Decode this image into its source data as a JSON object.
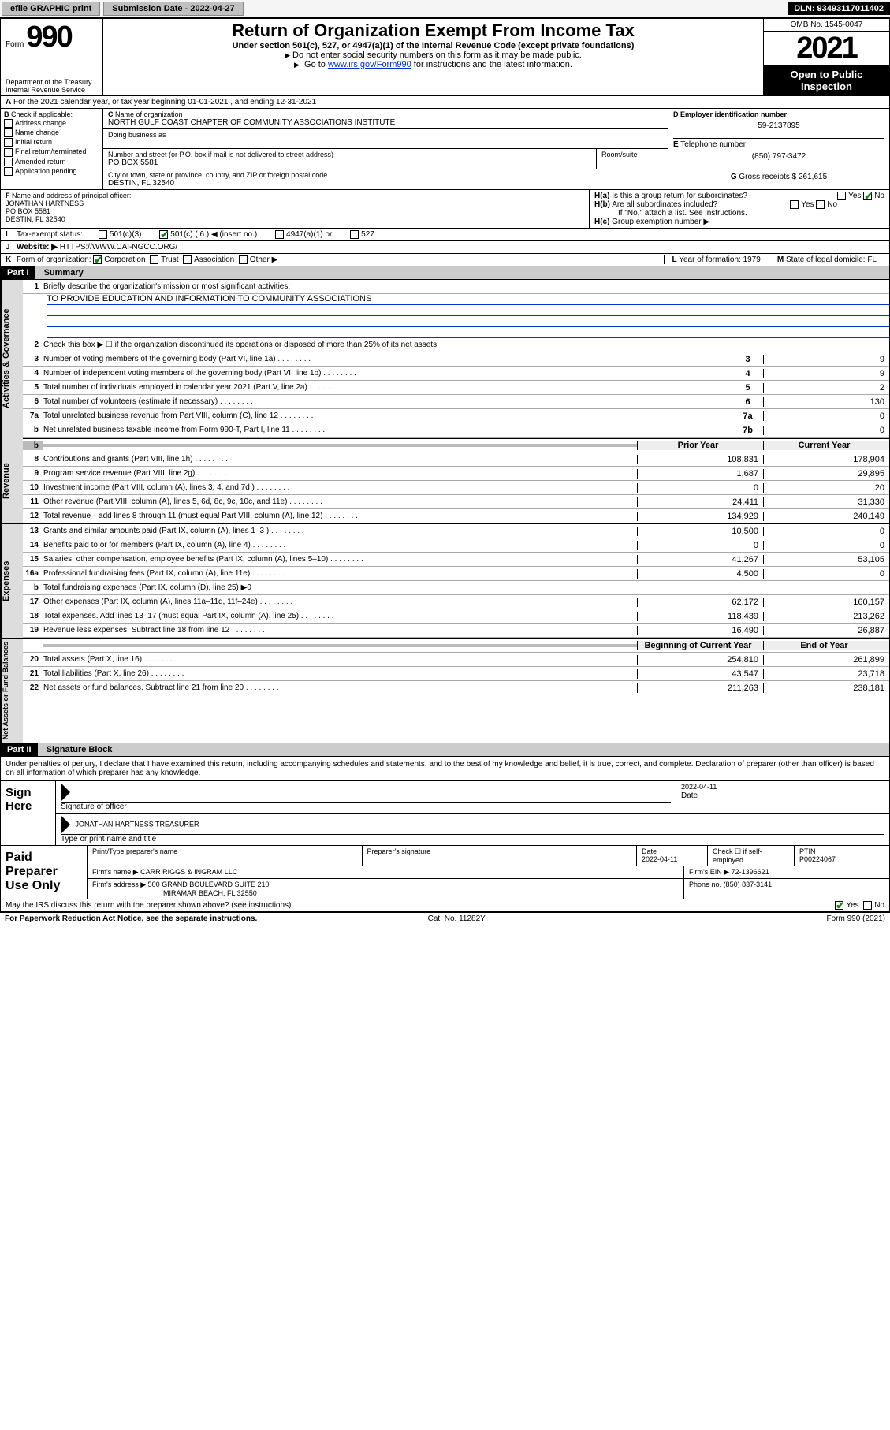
{
  "topbar": {
    "efile": "efile GRAPHIC print",
    "subdate_label": "Submission Date - ",
    "subdate": "2022-04-27",
    "dln": "DLN: 93493117011402"
  },
  "header": {
    "form_label": "Form",
    "form_num": "990",
    "dept": "Department of the Treasury\nInternal Revenue Service",
    "title": "Return of Organization Exempt From Income Tax",
    "sub": "Under section 501(c), 527, or 4947(a)(1) of the Internal Revenue Code (except private foundations)",
    "note1": "Do not enter social security numbers on this form as it may be made public.",
    "note2_pre": "Go to ",
    "note2_link": "www.irs.gov/Form990",
    "note2_post": " for instructions and the latest information.",
    "omb": "OMB No. 1545-0047",
    "year": "2021",
    "inspect": "Open to Public Inspection"
  },
  "rowA": "For the 2021 calendar year, or tax year beginning 01-01-2021    , and ending 12-31-2021",
  "secB": {
    "label": "Check if applicable:",
    "opts": [
      "Address change",
      "Name change",
      "Initial return",
      "Final return/terminated",
      "Amended return",
      "Application pending"
    ],
    "c_label": "Name of organization",
    "org": "NORTH GULF COAST CHAPTER OF COMMUNITY ASSOCIATIONS INSTITUTE",
    "dba_label": "Doing business as",
    "addr_label": "Number and street (or P.O. box if mail is not delivered to street address)",
    "room_label": "Room/suite",
    "addr": "PO BOX 5581",
    "city_label": "City or town, state or province, country, and ZIP or foreign postal code",
    "city": "DESTIN, FL  32540",
    "d_label": "Employer identification number",
    "ein": "59-2137895",
    "e_label": "Telephone number",
    "phone": "(850) 797-3472",
    "g_label": "Gross receipts $",
    "gross": "261,615"
  },
  "secF": {
    "f_label": "Name and address of principal officer:",
    "officer": "JONATHAN HARTNESS\nPO BOX 5581\nDESTIN, FL  32540",
    "ha": "Is this a group return for subordinates?",
    "hb": "Are all subordinates included?",
    "hb_note": "If \"No,\" attach a list. See instructions.",
    "hc": "Group exemption number ▶"
  },
  "rowI_label": "Tax-exempt status:",
  "rowI_opts": [
    "501(c)(3)",
    "501(c) ( 6 ) ◀ (insert no.)",
    "4947(a)(1) or",
    "527"
  ],
  "rowJ_label": "Website: ▶",
  "website": "HTTPS://WWW.CAI-NGCC.ORG/",
  "rowK_label": "Form of organization:",
  "rowK_opts": [
    "Corporation",
    "Trust",
    "Association",
    "Other ▶"
  ],
  "rowL": "Year of formation: 1979",
  "rowM": "State of legal domicile: FL",
  "part1": {
    "num": "Part I",
    "title": "Summary"
  },
  "gov": {
    "l1": "Briefly describe the organization's mission or most significant activities:",
    "mission": "TO PROVIDE EDUCATION AND INFORMATION TO COMMUNITY ASSOCIATIONS",
    "l2": "Check this box ▶ ☐  if the organization discontinued its operations or disposed of more than 25% of its net assets.",
    "rows": [
      {
        "n": "3",
        "t": "Number of voting members of the governing body (Part VI, line 1a)",
        "v": "9"
      },
      {
        "n": "4",
        "t": "Number of independent voting members of the governing body (Part VI, line 1b)",
        "v": "9"
      },
      {
        "n": "5",
        "t": "Total number of individuals employed in calendar year 2021 (Part V, line 2a)",
        "v": "2"
      },
      {
        "n": "6",
        "t": "Total number of volunteers (estimate if necessary)",
        "v": "130"
      },
      {
        "n": "7a",
        "t": "Total unrelated business revenue from Part VIII, column (C), line 12",
        "v": "0"
      },
      {
        "n": "b",
        "t": "Net unrelated business taxable income from Form 990-T, Part I, line 11",
        "nc": "7b",
        "v": "0"
      }
    ]
  },
  "rev": {
    "hdr_prior": "Prior Year",
    "hdr_cur": "Current Year",
    "rows": [
      {
        "n": "8",
        "t": "Contributions and grants (Part VIII, line 1h)",
        "p": "108,831",
        "c": "178,904"
      },
      {
        "n": "9",
        "t": "Program service revenue (Part VIII, line 2g)",
        "p": "1,687",
        "c": "29,895"
      },
      {
        "n": "10",
        "t": "Investment income (Part VIII, column (A), lines 3, 4, and 7d )",
        "p": "0",
        "c": "20"
      },
      {
        "n": "11",
        "t": "Other revenue (Part VIII, column (A), lines 5, 6d, 8c, 9c, 10c, and 11e)",
        "p": "24,411",
        "c": "31,330"
      },
      {
        "n": "12",
        "t": "Total revenue—add lines 8 through 11 (must equal Part VIII, column (A), line 12)",
        "p": "134,929",
        "c": "240,149"
      }
    ]
  },
  "exp": {
    "rows": [
      {
        "n": "13",
        "t": "Grants and similar amounts paid (Part IX, column (A), lines 1–3 )",
        "p": "10,500",
        "c": "0"
      },
      {
        "n": "14",
        "t": "Benefits paid to or for members (Part IX, column (A), line 4)",
        "p": "0",
        "c": "0"
      },
      {
        "n": "15",
        "t": "Salaries, other compensation, employee benefits (Part IX, column (A), lines 5–10)",
        "p": "41,267",
        "c": "53,105"
      },
      {
        "n": "16a",
        "t": "Professional fundraising fees (Part IX, column (A), line 11e)",
        "p": "4,500",
        "c": "0"
      },
      {
        "n": "b",
        "t": "Total fundraising expenses (Part IX, column (D), line 25) ▶0",
        "shade": true
      },
      {
        "n": "17",
        "t": "Other expenses (Part IX, column (A), lines 11a–11d, 11f–24e)",
        "p": "62,172",
        "c": "160,157"
      },
      {
        "n": "18",
        "t": "Total expenses. Add lines 13–17 (must equal Part IX, column (A), line 25)",
        "p": "118,439",
        "c": "213,262"
      },
      {
        "n": "19",
        "t": "Revenue less expenses. Subtract line 18 from line 12",
        "p": "16,490",
        "c": "26,887"
      }
    ]
  },
  "net": {
    "hdr_prior": "Beginning of Current Year",
    "hdr_cur": "End of Year",
    "rows": [
      {
        "n": "20",
        "t": "Total assets (Part X, line 16)",
        "p": "254,810",
        "c": "261,899"
      },
      {
        "n": "21",
        "t": "Total liabilities (Part X, line 26)",
        "p": "43,547",
        "c": "23,718"
      },
      {
        "n": "22",
        "t": "Net assets or fund balances. Subtract line 21 from line 20",
        "p": "211,263",
        "c": "238,181"
      }
    ]
  },
  "part2": {
    "num": "Part II",
    "title": "Signature Block"
  },
  "sig_decl": "Under penalties of perjury, I declare that I have examined this return, including accompanying schedules and statements, and to the best of my knowledge and belief, it is true, correct, and complete. Declaration of preparer (other than officer) is based on all information of which preparer has any knowledge.",
  "sign": {
    "here": "Sign Here",
    "sig_label": "Signature of officer",
    "date": "2022-04-11",
    "date_label": "Date",
    "name": "JONATHAN HARTNESS TREASURER",
    "name_label": "Type or print name and title"
  },
  "prep": {
    "title": "Paid Preparer Use Only",
    "pname_label": "Print/Type preparer's name",
    "psig_label": "Preparer's signature",
    "pdate_label": "Date",
    "pdate": "2022-04-11",
    "pself_label": "Check ☐ if self-employed",
    "ptin_label": "PTIN",
    "ptin": "P00224067",
    "firm_name_label": "Firm's name    ▶",
    "firm_name": "CARR RIGGS & INGRAM LLC",
    "firm_ein_label": "Firm's EIN ▶",
    "firm_ein": "72-1396621",
    "firm_addr_label": "Firm's address ▶",
    "firm_addr": "500 GRAND BOULEVARD SUITE 210",
    "firm_city": "MIRAMAR BEACH, FL  32550",
    "phone_label": "Phone no.",
    "phone": "(850) 837-3141"
  },
  "discuss": "May the IRS discuss this return with the preparer shown above? (see instructions)",
  "footer": {
    "l": "For Paperwork Reduction Act Notice, see the separate instructions.",
    "m": "Cat. No. 11282Y",
    "r": "Form 990 (2021)"
  }
}
